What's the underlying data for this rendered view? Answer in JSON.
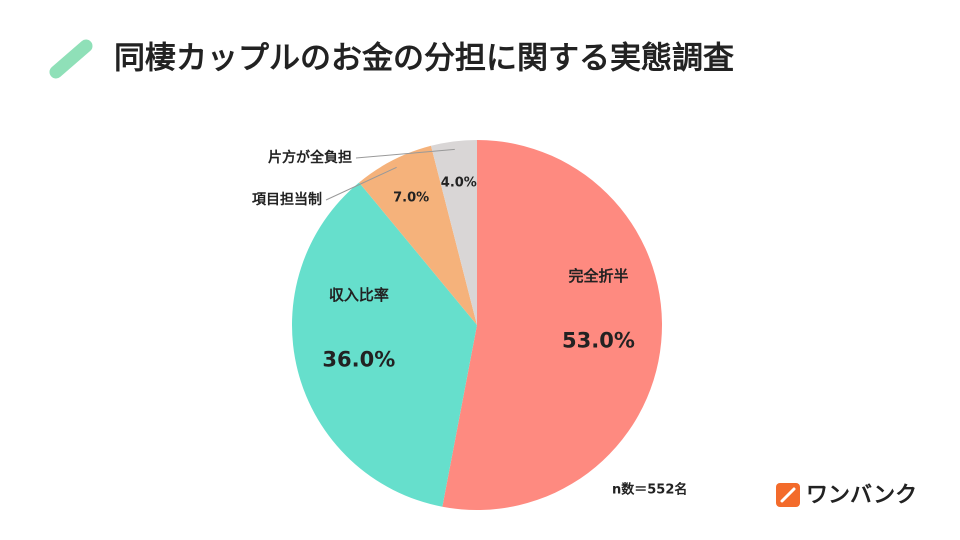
{
  "chart_data": {
    "type": "pie",
    "title": "同棲カップルのお金の分担に関する実態調査",
    "categories": [
      "完全折半",
      "収入比率",
      "項目担当制",
      "片方が全負担"
    ],
    "values": [
      53.0,
      36.0,
      7.0,
      4.0
    ],
    "value_labels": [
      "53.0%",
      "36.0%",
      "7.0%",
      "4.0%"
    ],
    "colors": [
      "#fe8a80",
      "#66dfcc",
      "#f5b27b",
      "#d9d6d6"
    ],
    "note": "n数＝552名"
  },
  "logo": {
    "text": "ワンバンク"
  }
}
